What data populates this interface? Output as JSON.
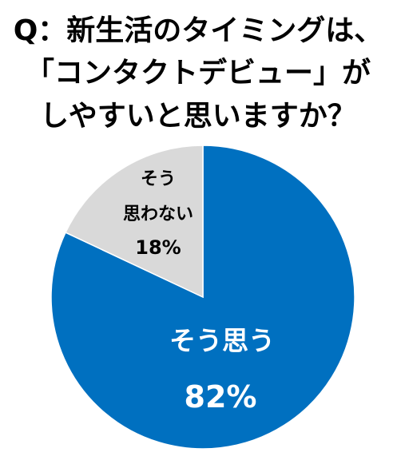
{
  "chart_data": {
    "type": "pie",
    "title_lines": [
      "Q：新生活のタイミングは、",
      "「コンタクトデビュー」が",
      "しやすいと思いますか？"
    ],
    "slices": [
      {
        "label": "そう思う",
        "value": 82,
        "value_label": "82%",
        "color": "#0070C0",
        "text_color": "#FFFFFF"
      },
      {
        "label_lines": [
          "そう",
          "思わない"
        ],
        "value": 18,
        "value_label": "18%",
        "color": "#D9D9D9",
        "text_color": "#000000"
      }
    ],
    "start": "12 o'clock",
    "direction": "clockwise"
  }
}
